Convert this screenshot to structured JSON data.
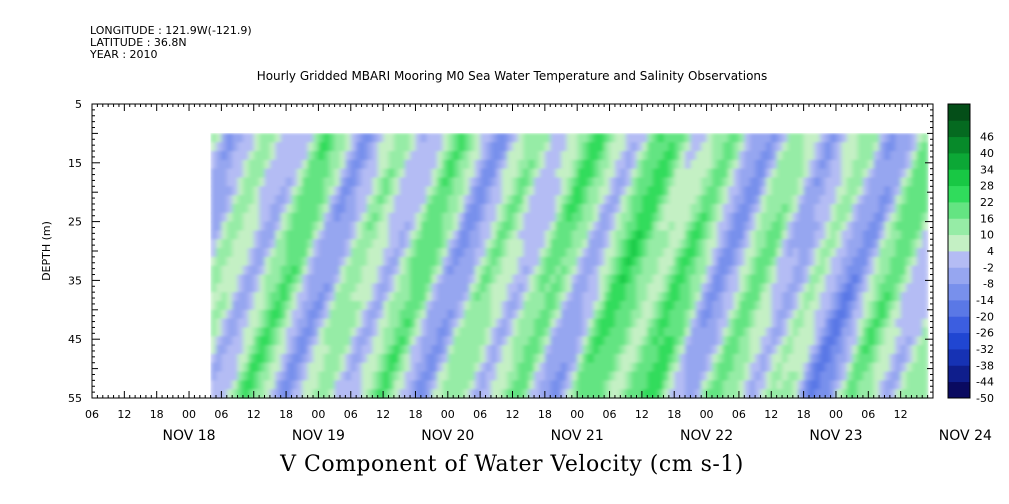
{
  "header": {
    "longitude": "LONGITUDE : 121.9W(-121.9)",
    "latitude": "LATITUDE : 36.8N",
    "year": "YEAR : 2010"
  },
  "chart_data": {
    "type": "heatmap",
    "title": "Hourly Gridded MBARI Mooring M0 Sea Water Temperature and Salinity Observations",
    "xlabel": "V Component of Water Velocity (cm s-1)",
    "ylabel": "DEPTH (m)",
    "yticks": [
      5,
      15,
      25,
      35,
      45,
      55
    ],
    "ylim": [
      55,
      5
    ],
    "data_depth_range": [
      10,
      55
    ],
    "x_days": [
      "NOV 18",
      "NOV 19",
      "NOV 20",
      "NOV 21",
      "NOV 22",
      "NOV 23",
      "NOV 24"
    ],
    "x_hour_ticks": [
      "00",
      "06",
      "12",
      "18"
    ],
    "x_range_hours": [
      -18,
      138
    ],
    "data_start_hour": 4,
    "colorbar": {
      "levels": [
        -50,
        -44,
        -38,
        -32,
        -26,
        -20,
        -14,
        -8,
        -2,
        4,
        10,
        16,
        22,
        28,
        34,
        40,
        46
      ],
      "colors": [
        "#0a0a60",
        "#0f1e8c",
        "#1632b4",
        "#2046d2",
        "#3c5ee0",
        "#5a78e6",
        "#7890ec",
        "#96a6f0",
        "#b4bcf4",
        "#c4f0c4",
        "#96eca6",
        "#64e482",
        "#30dc5c",
        "#18c844",
        "#0ca836",
        "#078a2a",
        "#056a20",
        "#044e18"
      ]
    },
    "grid": false
  }
}
